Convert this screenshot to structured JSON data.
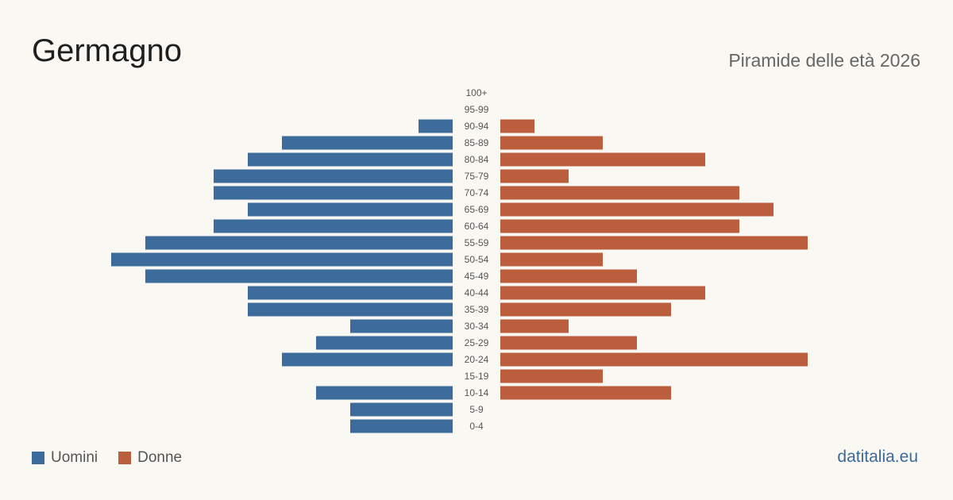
{
  "header": {
    "title": "Germagno",
    "subtitle": "Piramide delle età 2026"
  },
  "legend": {
    "men_label": "Uomini",
    "women_label": "Donne"
  },
  "source": "datitalia.eu",
  "colors": {
    "men": "#3d6b9c",
    "women": "#bb5e3e"
  },
  "chart_data": {
    "type": "bar",
    "orientation": "horizontal-population-pyramid",
    "categories": [
      "100+",
      "95-99",
      "90-94",
      "85-89",
      "80-84",
      "75-79",
      "70-74",
      "65-69",
      "60-64",
      "55-59",
      "50-54",
      "45-49",
      "40-44",
      "35-39",
      "30-34",
      "25-29",
      "20-24",
      "15-19",
      "10-14",
      "5-9",
      "0-4"
    ],
    "series": [
      {
        "name": "Uomini",
        "values": [
          0,
          0,
          1,
          5,
          6,
          7,
          7,
          6,
          7,
          9,
          10,
          9,
          6,
          6,
          3,
          4,
          5,
          0,
          4,
          3,
          3
        ]
      },
      {
        "name": "Donne",
        "values": [
          0,
          0,
          1,
          3,
          6,
          2,
          7,
          8,
          7,
          9,
          3,
          4,
          6,
          5,
          2,
          4,
          9,
          3,
          5,
          0,
          0
        ]
      }
    ],
    "xlim": [
      0,
      10
    ]
  }
}
